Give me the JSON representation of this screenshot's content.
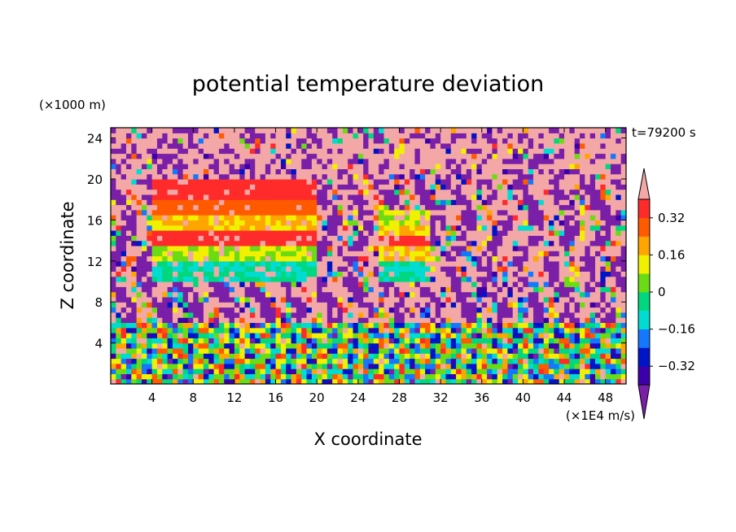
{
  "chart_data": {
    "type": "heatmap",
    "title": "potential temperature deviation",
    "xlabel": "X coordinate",
    "ylabel": "Z coordinate",
    "x_unit": "(×1E4 m/s)",
    "y_unit": "(×1000 m)",
    "time_label": "t=79200 s",
    "xlim": [
      0,
      50
    ],
    "ylim": [
      0,
      25
    ],
    "x_ticks": [
      4,
      8,
      12,
      16,
      20,
      24,
      28,
      32,
      36,
      40,
      44,
      48
    ],
    "y_ticks": [
      4,
      8,
      12,
      16,
      20,
      24
    ],
    "colorbar": {
      "levels": [
        -0.4,
        -0.32,
        -0.24,
        -0.16,
        -0.08,
        0,
        0.08,
        0.16,
        0.24,
        0.32,
        0.4
      ],
      "labeled_ticks": [
        -0.32,
        -0.16,
        0,
        0.16,
        0.32
      ],
      "tick_labels": [
        "−0.32",
        "−0.16",
        "0",
        "0.16",
        "0.32"
      ],
      "colors": [
        "#7a1fa8",
        "#3c00aa",
        "#0014c8",
        "#1478ff",
        "#00dcd2",
        "#00d77e",
        "#6bdc14",
        "#f0f000",
        "#ffa500",
        "#ff5a00",
        "#ff2a2a",
        "#f4a7a7"
      ],
      "under_color": "#7a1fa8",
      "over_color": "#f4a7a7",
      "extend": "both"
    },
    "field_description_regions": [
      {
        "x": [
          0,
          50
        ],
        "z": [
          0,
          6
        ],
        "pattern": "turbulent, all values"
      },
      {
        "x": [
          0,
          50
        ],
        "z": [
          20,
          25
        ],
        "dominant": "over",
        "mixed_with": "under"
      },
      {
        "x": [
          4,
          20
        ],
        "z": [
          10,
          20
        ],
        "banded": [
          {
            "z": 19,
            "value": 0.36
          },
          {
            "z": 17.5,
            "value": 0.28
          },
          {
            "z": 16,
            "value": 0.16
          },
          {
            "z": 14.5,
            "value": 0.36
          },
          {
            "z": 13,
            "value": 0.08
          },
          {
            "z": 11.5,
            "value": -0.08
          }
        ]
      },
      {
        "x": [
          26,
          31
        ],
        "z": [
          10,
          17
        ],
        "banded": [
          {
            "z": 16,
            "value": 0.08
          },
          {
            "z": 15,
            "value": 0.16
          },
          {
            "z": 14.5,
            "value": 0.36
          },
          {
            "z": 13,
            "value": 0.16
          },
          {
            "z": 11.5,
            "value": -0.08
          }
        ]
      }
    ]
  }
}
